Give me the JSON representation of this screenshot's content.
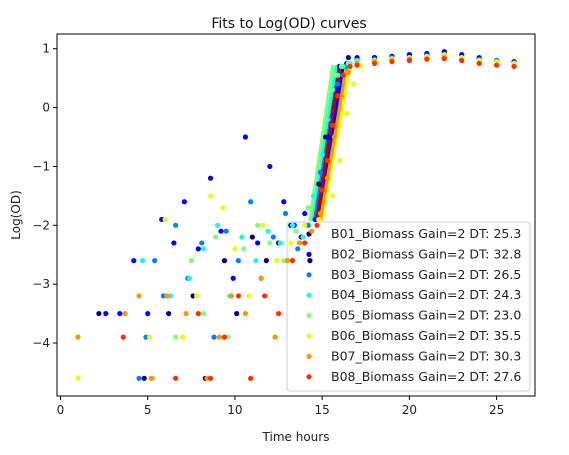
{
  "chart_data": {
    "type": "scatter",
    "title": "Fits to Log(OD) curves",
    "xlabel": "Time hours",
    "ylabel": "Log(OD)",
    "xlim": [
      -0.2,
      27.2
    ],
    "ylim": [
      -4.9,
      1.25
    ],
    "xticks": [
      0,
      5,
      10,
      15,
      20,
      25
    ],
    "yticks": [
      1,
      0,
      -1,
      -2,
      -3,
      -4
    ],
    "xtick_labels": [
      "0",
      "5",
      "10",
      "15",
      "20",
      "25"
    ],
    "ytick_labels": [
      "1",
      "0",
      "−1",
      "−2",
      "−3",
      "−4"
    ],
    "grid": false,
    "legend_position": "lower-right",
    "series": [
      {
        "name": "B01_Biomass Gain=2 DT: 25.3",
        "color": "#000080",
        "x": [
          2.2,
          4.8,
          6.2,
          7.6,
          8.3,
          9.4,
          10.1,
          11.0,
          11.8,
          12.5,
          13.2,
          13.8,
          14.3,
          14.8,
          15.2,
          15.6,
          16.0,
          16.5,
          17.0,
          18.0,
          19.0,
          20.0,
          21.0,
          22.0,
          23.0,
          24.0,
          25.0,
          26.0
        ],
        "y": [
          -3.5,
          -4.6,
          -3.5,
          -3.2,
          -4.6,
          -2.6,
          -3.5,
          -2.2,
          -2.6,
          -2.3,
          -2.0,
          -2.2,
          -2.6,
          -1.3,
          -0.5,
          0.3,
          0.7,
          0.85,
          0.82,
          0.85,
          0.87,
          0.88,
          0.9,
          0.92,
          0.85,
          0.82,
          0.8,
          0.78
        ]
      },
      {
        "name": "B02_Biomass Gain=2 DT: 32.8",
        "color": "#0000ff",
        "x": [
          2.6,
          3.4,
          4.2,
          5.0,
          5.8,
          6.5,
          7.1,
          7.9,
          8.6,
          9.2,
          9.9,
          10.6,
          11.3,
          12.0,
          12.8,
          13.4,
          14.0,
          14.6,
          15.4,
          15.9,
          16.4,
          17.0,
          18.0,
          19.0,
          20.0,
          21.0,
          22.0,
          23.0,
          24.0,
          25.0,
          26.0
        ],
        "y": [
          -3.5,
          -3.5,
          -2.6,
          -3.5,
          -1.9,
          -2.3,
          -1.6,
          -2.4,
          -1.2,
          -2.1,
          -2.9,
          -0.5,
          -2.3,
          -1.0,
          -1.6,
          -2.0,
          -1.8,
          -1.9,
          -0.5,
          0.3,
          0.75,
          0.85,
          0.85,
          0.87,
          0.9,
          0.92,
          0.95,
          0.9,
          0.85,
          0.8,
          0.78
        ]
      },
      {
        "name": "B03_Biomass Gain=2 DT: 26.5",
        "color": "#0080ff",
        "x": [
          4.5,
          4.9,
          5.4,
          5.9,
          6.6,
          7.3,
          8.1,
          8.8,
          9.5,
          10.2,
          10.9,
          11.5,
          12.2,
          12.9,
          13.6,
          14.2,
          14.9,
          15.4,
          15.9,
          16.4,
          17.0,
          18.0,
          19.0,
          20.0,
          21.0,
          22.0,
          23.0,
          24.0,
          25.0,
          26.0
        ],
        "y": [
          -4.6,
          -3.9,
          -2.6,
          -3.2,
          -2.0,
          -2.9,
          -2.3,
          -3.9,
          -2.1,
          -2.6,
          -1.6,
          -2.9,
          -2.2,
          -1.8,
          -2.4,
          -2.0,
          -1.1,
          -0.2,
          0.4,
          0.7,
          0.8,
          0.82,
          0.85,
          0.85,
          0.88,
          0.9,
          0.85,
          0.82,
          0.8,
          0.76
        ]
      },
      {
        "name": "B04_Biomass Gain=2 DT: 24.3",
        "color": "#15ffe1",
        "x": [
          4.7,
          6.3,
          7.4,
          8.2,
          9.0,
          9.7,
          10.4,
          11.2,
          11.9,
          12.6,
          13.3,
          13.9,
          14.5,
          15.0,
          15.3,
          15.6,
          15.9,
          16.2,
          16.6,
          17.0,
          18.0,
          19.0,
          20.0,
          21.0,
          22.0,
          23.0,
          24.0,
          25.0,
          26.0
        ],
        "y": [
          -2.6,
          -3.2,
          -2.9,
          -2.4,
          -2.0,
          -3.2,
          -2.2,
          -2.6,
          -2.1,
          -2.3,
          -2.0,
          -2.2,
          -1.5,
          -0.8,
          -0.2,
          0.3,
          0.55,
          0.7,
          0.75,
          0.8,
          0.8,
          0.82,
          0.85,
          0.85,
          0.87,
          0.85,
          0.8,
          0.78,
          0.75
        ]
      },
      {
        "name": "B05_Biomass Gain=2 DT: 23.0",
        "color": "#7dff7a",
        "x": [
          5.3,
          6.6,
          7.5,
          8.2,
          8.9,
          9.6,
          10.5,
          11.3,
          12.0,
          12.8,
          13.5,
          14.2,
          14.8,
          15.2,
          15.5,
          15.8,
          16.1,
          16.5,
          17.0,
          18.0,
          19.0,
          20.0,
          21.0,
          22.0,
          23.0,
          24.0,
          25.0,
          26.0
        ],
        "y": [
          -4.6,
          -3.9,
          -2.6,
          -3.5,
          -2.2,
          -3.9,
          -2.4,
          -2.0,
          -2.3,
          -2.6,
          -2.1,
          -1.7,
          -1.0,
          -0.2,
          0.3,
          0.55,
          0.7,
          0.75,
          0.78,
          0.8,
          0.82,
          0.83,
          0.85,
          0.85,
          0.83,
          0.8,
          0.78,
          0.75
        ]
      },
      {
        "name": "B06_Biomass Gain=2 DT: 35.5",
        "color": "#e4ff12",
        "x": [
          1.0,
          5.1,
          6.0,
          7.0,
          7.8,
          8.6,
          9.3,
          10.0,
          10.8,
          11.6,
          12.4,
          13.2,
          14.0,
          14.8,
          15.6,
          16.0,
          16.4,
          16.8,
          17.2,
          18.0,
          19.0,
          20.0,
          21.0,
          22.0,
          23.0,
          24.0,
          25.0,
          26.0
        ],
        "y": [
          -4.6,
          -3.9,
          -1.9,
          -3.9,
          -3.2,
          -1.5,
          -1.7,
          -2.4,
          -3.2,
          -2.0,
          -2.6,
          -2.3,
          -2.0,
          -1.9,
          -1.5,
          -0.9,
          -0.1,
          0.4,
          0.7,
          0.8,
          0.83,
          0.85,
          0.87,
          0.9,
          0.85,
          0.8,
          0.78,
          0.75
        ]
      },
      {
        "name": "B07_Biomass Gain=2 DT: 30.3",
        "color": "#ff9400",
        "x": [
          1.0,
          3.7,
          4.5,
          5.2,
          6.1,
          7.2,
          8.4,
          9.1,
          9.8,
          10.6,
          11.5,
          12.3,
          13.0,
          13.7,
          14.4,
          14.9,
          15.3,
          15.7,
          16.1,
          16.5,
          17.0,
          18.0,
          19.0,
          20.0,
          21.0,
          22.0,
          23.0,
          24.0,
          25.0,
          26.0
        ],
        "y": [
          -3.9,
          -3.5,
          -3.2,
          -4.6,
          -3.2,
          -3.5,
          -4.6,
          -3.9,
          -3.2,
          -3.5,
          -2.9,
          -3.9,
          -2.6,
          -2.3,
          -2.1,
          -1.8,
          -1.2,
          -0.5,
          0.2,
          0.6,
          0.75,
          0.78,
          0.8,
          0.82,
          0.83,
          0.85,
          0.8,
          0.75,
          0.72,
          0.7
        ]
      },
      {
        "name": "B08_Biomass Gain=2 DT: 27.6",
        "color": "#ff3000",
        "x": [
          3.6,
          6.6,
          7.9,
          8.6,
          9.4,
          10.2,
          10.9,
          11.7,
          12.5,
          13.3,
          14.0,
          14.7,
          15.0,
          15.3,
          15.6,
          15.9,
          16.2,
          16.6,
          17.0,
          18.0,
          19.0,
          20.0,
          21.0,
          22.0,
          23.0,
          24.0,
          25.0,
          26.0
        ],
        "y": [
          -3.9,
          -4.6,
          -3.5,
          -4.6,
          -3.9,
          -3.2,
          -4.6,
          -3.2,
          -3.5,
          -2.6,
          -2.3,
          -2.0,
          -1.4,
          -0.9,
          -0.3,
          0.2,
          0.55,
          0.7,
          0.72,
          0.75,
          0.78,
          0.8,
          0.82,
          0.83,
          0.8,
          0.75,
          0.72,
          0.7
        ]
      }
    ],
    "fits": [
      {
        "color": "#000080",
        "x": [
          14.5,
          15.9
        ],
        "y": [
          -1.9,
          0.7
        ]
      },
      {
        "color": "#0000ff",
        "x": [
          14.8,
          16.2
        ],
        "y": [
          -1.9,
          0.7
        ]
      },
      {
        "color": "#0080ff",
        "x": [
          14.6,
          16.0
        ],
        "y": [
          -1.9,
          0.7
        ]
      },
      {
        "color": "#15ffe1",
        "x": [
          14.4,
          15.8
        ],
        "y": [
          -1.9,
          0.7
        ]
      },
      {
        "color": "#7dff7a",
        "x": [
          14.3,
          15.6
        ],
        "y": [
          -1.9,
          0.7
        ]
      },
      {
        "color": "#e4ff12",
        "x": [
          15.0,
          16.6
        ],
        "y": [
          -1.9,
          0.7
        ]
      },
      {
        "color": "#ff9400",
        "x": [
          14.9,
          16.4
        ],
        "y": [
          -1.9,
          0.7
        ]
      },
      {
        "color": "#c00000",
        "x": [
          14.7,
          16.0
        ],
        "y": [
          -1.9,
          0.7
        ]
      }
    ]
  }
}
